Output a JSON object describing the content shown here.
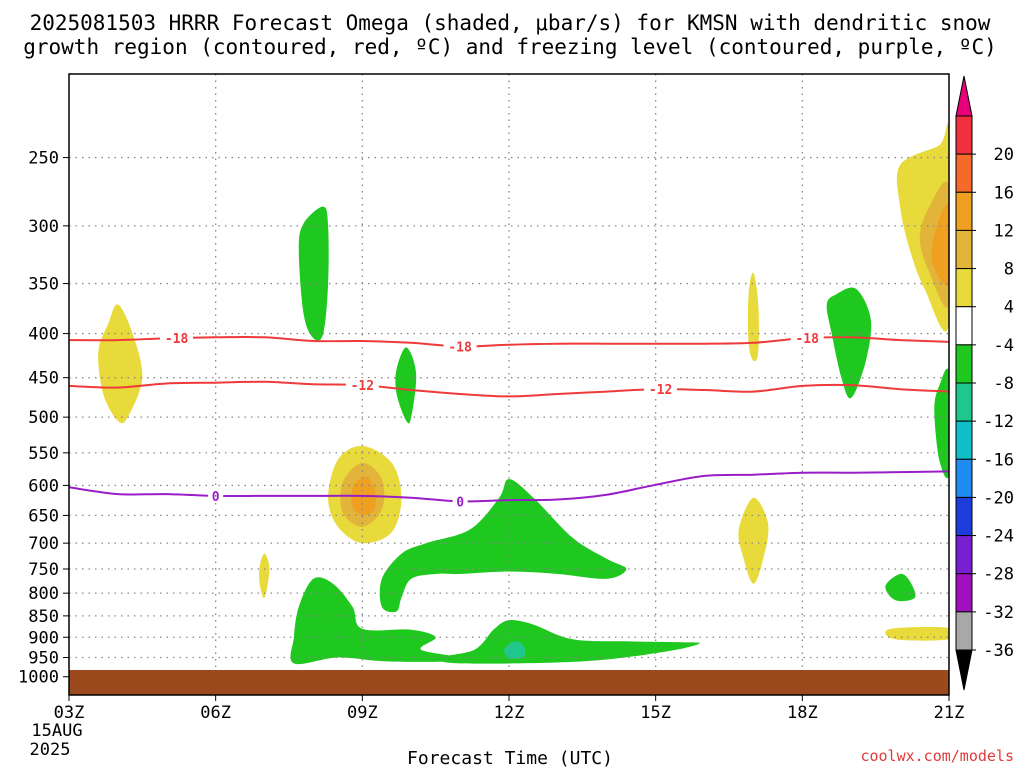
{
  "chart_data": {
    "type": "contour",
    "title_lines": [
      "2025081503 HRRR Forecast Omega (shaded, μbar/s) for KMSN with dendritic snow",
      "growth region (contoured, red, ºC) and freezing level (contoured, purple, ºC)"
    ],
    "xlabel": "Forecast Time (UTC)",
    "credit": "coolwx.com/models",
    "x_ticks": [
      "03Z",
      "06Z",
      "09Z",
      "12Z",
      "15Z",
      "18Z",
      "21Z"
    ],
    "x_tick_hours": [
      3,
      6,
      9,
      12,
      15,
      18,
      21
    ],
    "x_sublabels": [
      "15AUG",
      "2025"
    ],
    "xlim": [
      3,
      21
    ],
    "y_ticks": [
      250,
      300,
      350,
      400,
      450,
      500,
      550,
      600,
      650,
      700,
      750,
      800,
      850,
      900,
      950,
      1000
    ],
    "ylim": [
      1050,
      200
    ],
    "y_scale": "log-pressure",
    "grid": true,
    "ground_color": "#9b4a1e",
    "colorbar": {
      "ticks": [
        "20",
        "16",
        "12",
        "8",
        "4",
        "-4",
        "-8",
        "-12",
        "-16",
        "-20",
        "-24",
        "-28",
        "-32",
        "-36"
      ],
      "colors": [
        "#e8007a",
        "#f0303c",
        "#f56a28",
        "#f0a020",
        "#e2b43a",
        "#e8da3a",
        "#ffffff",
        "#1ec81e",
        "#1ec88c",
        "#10c0c8",
        "#1e8cf0",
        "#1e3cdc",
        "#7a1ed2",
        "#a010c0",
        "#a8a8a8",
        "#000000"
      ]
    },
    "contours": [
      {
        "name": "-18",
        "color": "#ee3a3a",
        "kind": "dendritic",
        "points": [
          [
            3,
            407
          ],
          [
            4,
            407
          ],
          [
            5,
            405
          ],
          [
            6,
            404
          ],
          [
            7,
            404
          ],
          [
            8,
            408
          ],
          [
            9,
            408
          ],
          [
            10,
            410
          ],
          [
            11,
            414
          ],
          [
            12,
            412
          ],
          [
            13,
            411
          ],
          [
            14,
            411
          ],
          [
            15,
            411
          ],
          [
            16,
            411
          ],
          [
            17,
            410
          ],
          [
            18,
            405
          ],
          [
            19,
            404
          ],
          [
            20,
            407
          ],
          [
            21,
            409
          ]
        ],
        "labels": [
          5.2,
          11.0,
          18.1
        ]
      },
      {
        "name": "-12",
        "color": "#ee3a3a",
        "kind": "dendritic",
        "points": [
          [
            3,
            460
          ],
          [
            4,
            462
          ],
          [
            5,
            457
          ],
          [
            6,
            456
          ],
          [
            7,
            455
          ],
          [
            8,
            458
          ],
          [
            9,
            459
          ],
          [
            10,
            465
          ],
          [
            11,
            470
          ],
          [
            12,
            473
          ],
          [
            13,
            470
          ],
          [
            14,
            467
          ],
          [
            15,
            464
          ],
          [
            16,
            465
          ],
          [
            17,
            467
          ],
          [
            18,
            460
          ],
          [
            19,
            459
          ],
          [
            20,
            464
          ],
          [
            21,
            467
          ]
        ],
        "labels": [
          9.0,
          15.1
        ]
      },
      {
        "name": "0",
        "color": "#9a1ec8",
        "kind": "freezing",
        "points": [
          [
            3,
            603
          ],
          [
            4,
            614
          ],
          [
            5,
            614
          ],
          [
            6,
            617
          ],
          [
            7,
            617
          ],
          [
            8,
            617
          ],
          [
            9,
            617
          ],
          [
            10,
            620
          ],
          [
            11,
            626
          ],
          [
            12,
            624
          ],
          [
            13,
            623
          ],
          [
            14,
            615
          ],
          [
            15,
            599
          ],
          [
            16,
            585
          ],
          [
            17,
            583
          ],
          [
            18,
            580
          ],
          [
            19,
            580
          ],
          [
            20,
            579
          ],
          [
            21,
            578
          ]
        ],
        "labels": [
          6.0,
          11.0
        ]
      }
    ],
    "omega_regions": [
      {
        "level": "-4",
        "color": "#1ec81e",
        "points": [
          [
            8.2,
            285
          ],
          [
            8.3,
            300
          ],
          [
            8.3,
            350
          ],
          [
            8.2,
            400
          ],
          [
            8.0,
            405
          ],
          [
            7.8,
            380
          ],
          [
            7.7,
            320
          ],
          [
            7.8,
            298
          ]
        ]
      },
      {
        "level": "-4",
        "color": "#1ec81e",
        "points": [
          [
            9.9,
            415
          ],
          [
            10.1,
            445
          ],
          [
            10.0,
            500
          ],
          [
            9.9,
            505
          ],
          [
            9.7,
            470
          ],
          [
            9.7,
            440
          ]
        ]
      },
      {
        "level": "-4",
        "color": "#1ec81e",
        "points": [
          [
            19.1,
            355
          ],
          [
            19.4,
            385
          ],
          [
            19.3,
            430
          ],
          [
            19.0,
            475
          ],
          [
            18.8,
            450
          ],
          [
            18.6,
            400
          ],
          [
            18.5,
            370
          ],
          [
            18.7,
            360
          ]
        ]
      },
      {
        "level": "-4",
        "color": "#1ec81e",
        "points": [
          [
            21,
            445
          ],
          [
            20.8,
            460
          ],
          [
            20.7,
            490
          ],
          [
            20.8,
            560
          ],
          [
            21,
            580
          ]
        ]
      },
      {
        "level": "-4",
        "color": "#1ec81e",
        "points": [
          [
            12.0,
            590
          ],
          [
            12.5,
            620
          ],
          [
            13.3,
            690
          ],
          [
            14.0,
            730
          ],
          [
            14.4,
            750
          ],
          [
            14.0,
            770
          ],
          [
            13.0,
            760
          ],
          [
            12.0,
            755
          ],
          [
            11.0,
            760
          ],
          [
            10.5,
            760
          ],
          [
            10.0,
            770
          ],
          [
            9.8,
            810
          ],
          [
            9.7,
            840
          ],
          [
            9.4,
            830
          ],
          [
            9.4,
            770
          ],
          [
            9.8,
            720
          ],
          [
            10.3,
            700
          ],
          [
            11.2,
            675
          ],
          [
            11.8,
            620
          ]
        ]
      },
      {
        "level": "-4",
        "color": "#1ec81e",
        "points": [
          [
            8.0,
            770
          ],
          [
            8.4,
            780
          ],
          [
            8.8,
            830
          ],
          [
            9.0,
            880
          ],
          [
            10.0,
            882
          ],
          [
            10.5,
            900
          ],
          [
            10.2,
            930
          ],
          [
            11.0,
            950
          ],
          [
            10.8,
            960
          ],
          [
            9.5,
            960
          ],
          [
            8.5,
            950
          ],
          [
            7.6,
            965
          ],
          [
            7.6,
            900
          ],
          [
            7.7,
            830
          ]
        ]
      },
      {
        "level": "-4",
        "color": "#1ec81e",
        "points": [
          [
            12.0,
            860
          ],
          [
            12.5,
            870
          ],
          [
            13.3,
            905
          ],
          [
            14.5,
            910
          ],
          [
            15.5,
            912
          ],
          [
            15.9,
            915
          ],
          [
            15.2,
            935
          ],
          [
            13.5,
            960
          ],
          [
            11.0,
            965
          ],
          [
            10.6,
            950
          ],
          [
            11.3,
            930
          ],
          [
            11.7,
            880
          ]
        ]
      },
      {
        "level": "-4",
        "color": "#1ec81e",
        "points": [
          [
            20.0,
            760
          ],
          [
            20.2,
            775
          ],
          [
            20.3,
            810
          ],
          [
            19.9,
            815
          ],
          [
            19.7,
            785
          ]
        ]
      },
      {
        "level": "-8",
        "color": "#1ec88c",
        "points": [
          [
            12.1,
            910
          ],
          [
            12.3,
            920
          ],
          [
            12.3,
            948
          ],
          [
            12.0,
            952
          ],
          [
            11.9,
            930
          ]
        ]
      },
      {
        "level": "4",
        "color": "#e8da3a",
        "points": [
          [
            4.0,
            370
          ],
          [
            4.3,
            400
          ],
          [
            4.5,
            450
          ],
          [
            4.2,
            500
          ],
          [
            4.0,
            505
          ],
          [
            3.7,
            470
          ],
          [
            3.6,
            420
          ],
          [
            3.8,
            390
          ]
        ]
      },
      {
        "level": "4",
        "color": "#e8da3a",
        "points": [
          [
            9.0,
            540
          ],
          [
            9.6,
            565
          ],
          [
            9.8,
            620
          ],
          [
            9.6,
            680
          ],
          [
            9.0,
            700
          ],
          [
            8.5,
            670
          ],
          [
            8.3,
            620
          ],
          [
            8.5,
            560
          ]
        ]
      },
      {
        "level": "8",
        "color": "#e2b43a",
        "points": [
          [
            9.0,
            565
          ],
          [
            9.4,
            590
          ],
          [
            9.4,
            640
          ],
          [
            9.0,
            670
          ],
          [
            8.6,
            645
          ],
          [
            8.6,
            595
          ]
        ]
      },
      {
        "level": "12",
        "color": "#f0a020",
        "points": [
          [
            9.05,
            585
          ],
          [
            9.25,
            605
          ],
          [
            9.25,
            640
          ],
          [
            9.0,
            650
          ],
          [
            8.8,
            635
          ],
          [
            8.8,
            605
          ]
        ]
      },
      {
        "level": "4",
        "color": "#e8da3a",
        "points": [
          [
            7.0,
            720
          ],
          [
            7.1,
            750
          ],
          [
            7.0,
            810
          ],
          [
            6.9,
            780
          ],
          [
            6.9,
            745
          ]
        ]
      },
      {
        "level": "4",
        "color": "#e8da3a",
        "points": [
          [
            17.0,
            340
          ],
          [
            17.1,
            370
          ],
          [
            17.1,
            420
          ],
          [
            17.0,
            430
          ],
          [
            16.9,
            410
          ],
          [
            16.9,
            360
          ]
        ]
      },
      {
        "level": "4",
        "color": "#e8da3a",
        "points": [
          [
            17.0,
            620
          ],
          [
            17.3,
            665
          ],
          [
            17.2,
            730
          ],
          [
            17.0,
            780
          ],
          [
            16.8,
            730
          ],
          [
            16.7,
            675
          ]
        ]
      },
      {
        "level": "4",
        "color": "#e8da3a",
        "points": [
          [
            20.8,
            242
          ],
          [
            21,
            235
          ],
          [
            21,
            390
          ],
          [
            20.5,
            355
          ],
          [
            20.2,
            320
          ],
          [
            20.0,
            285
          ],
          [
            20.0,
            255
          ]
        ]
      },
      {
        "level": "8",
        "color": "#e2b43a",
        "points": [
          [
            21,
            270
          ],
          [
            20.6,
            285
          ],
          [
            20.4,
            310
          ],
          [
            20.6,
            340
          ],
          [
            21,
            370
          ]
        ]
      },
      {
        "level": "12",
        "color": "#f0a020",
        "points": [
          [
            21,
            285
          ],
          [
            20.75,
            300
          ],
          [
            20.65,
            330
          ],
          [
            21,
            350
          ]
        ]
      },
      {
        "level": "4",
        "color": "#e8da3a",
        "points": [
          [
            19.8,
            880
          ],
          [
            21,
            878
          ],
          [
            21,
            905
          ],
          [
            19.9,
            905
          ]
        ]
      }
    ]
  }
}
